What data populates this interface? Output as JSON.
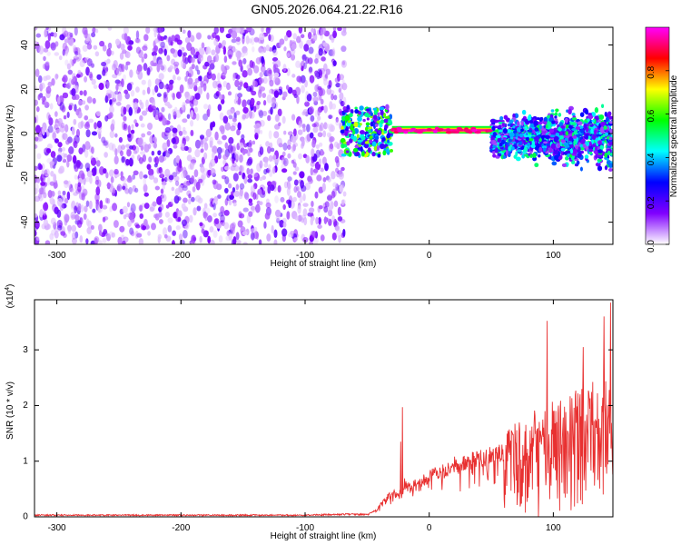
{
  "title": "GN05.2026.064.21.22.R16",
  "chart_data": [
    {
      "type": "heatmap",
      "xlabel": "Height of straight line (km)",
      "ylabel": "Frequency (Hz)",
      "xlim": [
        -318,
        148
      ],
      "ylim": [
        -50,
        48
      ],
      "xticks": [
        -300,
        -200,
        -100,
        0,
        100
      ],
      "yticks": [
        -40,
        -20,
        0,
        20,
        40
      ],
      "colorbar": {
        "label": "Normalized spectral amplitude",
        "range": [
          0,
          1
        ],
        "ticks": [
          "0.0",
          "0.2",
          "0.4",
          "0.6",
          "0.8"
        ],
        "colors": [
          "#ffffff",
          "#8000ff",
          "#0000ff",
          "#00ffff",
          "#00ff00",
          "#ffff00",
          "#ff0000",
          "#ff00ff"
        ]
      },
      "regions": [
        {
          "name": "noise",
          "x": [
            -318,
            -68
          ],
          "y": [
            -50,
            48
          ],
          "amplitude": 0.2
        },
        {
          "name": "scatter",
          "x": [
            -70,
            -30
          ],
          "y": [
            -10,
            12
          ],
          "amplitude": 0.6
        },
        {
          "name": "line",
          "x": [
            -30,
            50
          ],
          "y": [
            0,
            2
          ],
          "amplitude": 0.9
        },
        {
          "name": "band",
          "x": [
            50,
            148
          ],
          "y": [
            -10,
            6
          ],
          "amplitude": 0.4
        }
      ]
    },
    {
      "type": "line",
      "xlabel": "Height of straight line (km)",
      "ylabel": "SNR (10 * v/v)",
      "multiplier": "(x10",
      "multiplier_exp": "4",
      "multiplier_close": ")",
      "xlim": [
        -318,
        148
      ],
      "ylim": [
        0,
        3.9
      ],
      "xticks": [
        -300,
        -200,
        -100,
        0,
        100
      ],
      "yticks": [
        0,
        1,
        2,
        3
      ],
      "color": "#e83030",
      "envelope": {
        "x": [
          -318,
          -100,
          -50,
          -42,
          -35,
          -30,
          -25,
          -21,
          -20,
          -15,
          -10,
          -5,
          0,
          10,
          20,
          30,
          40,
          50,
          55,
          60,
          62,
          70,
          80,
          90,
          100,
          110,
          120,
          130,
          140,
          148
        ],
        "y": [
          0.03,
          0.03,
          0.05,
          0.15,
          0.4,
          0.5,
          0.45,
          0.55,
          0.7,
          0.6,
          0.75,
          0.75,
          0.85,
          0.95,
          1.08,
          1.15,
          1.22,
          1.27,
          1.3,
          1.32,
          1.6,
          1.7,
          1.85,
          2.0,
          2.1,
          2.2,
          2.3,
          2.4,
          2.55,
          2.7
        ]
      },
      "spikes": [
        {
          "x": -21.5,
          "y": 1.97
        },
        {
          "x": -23,
          "y": 1.35
        },
        {
          "x": 95,
          "y": 3.52
        },
        {
          "x": 124,
          "y": 3.05
        },
        {
          "x": 141,
          "y": 3.6
        },
        {
          "x": 146,
          "y": 3.85
        }
      ]
    }
  ]
}
